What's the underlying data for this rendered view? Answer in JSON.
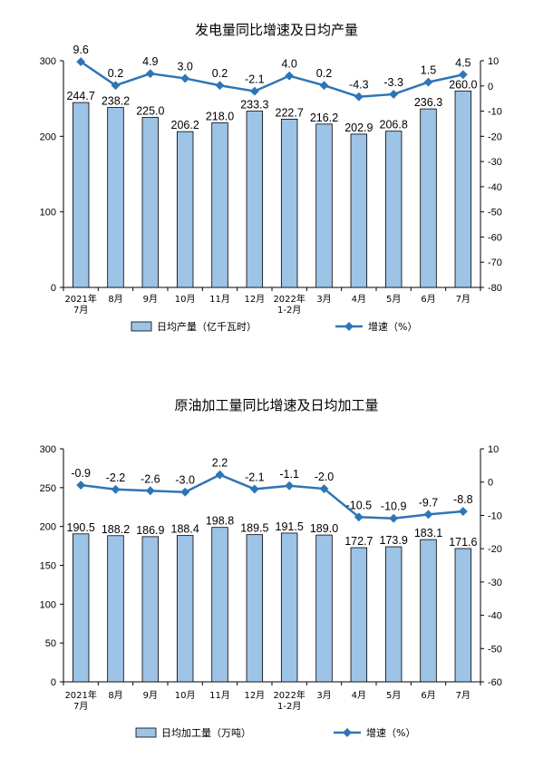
{
  "chart_data": [
    {
      "type": "bar+line",
      "title": "发电量同比增速及日均产量",
      "categories": [
        [
          "2021年",
          "7月"
        ],
        [
          "8月"
        ],
        [
          "9月"
        ],
        [
          "10月"
        ],
        [
          "11月"
        ],
        [
          "12月"
        ],
        [
          "2022年",
          "1-2月"
        ],
        [
          "3月"
        ],
        [
          "4月"
        ],
        [
          "5月"
        ],
        [
          "6月"
        ],
        [
          "7月"
        ]
      ],
      "bar_series": {
        "name": "日均产量（亿千瓦时）",
        "values": [
          244.7,
          238.2,
          225.0,
          206.2,
          218.0,
          233.3,
          222.7,
          216.2,
          202.9,
          206.8,
          236.3,
          260.0
        ],
        "labels": [
          "244.7",
          "238.2",
          "225.0",
          "206.2",
          "218.0",
          "233.3",
          "222.7",
          "216.2",
          "202.9",
          "206.8",
          "236.3",
          "260.0"
        ]
      },
      "line_series": {
        "name": "增速（%）",
        "values": [
          9.6,
          0.2,
          4.9,
          3.0,
          0.2,
          -2.1,
          4.0,
          0.2,
          -4.3,
          -3.3,
          1.5,
          4.5
        ],
        "labels": [
          "9.6",
          "0.2",
          "4.9",
          "3.0",
          "0.2",
          "-2.1",
          "4.0",
          "0.2",
          "-4.3",
          "-3.3",
          "1.5",
          "4.5"
        ]
      },
      "left_axis": {
        "min": 0,
        "max": 300,
        "ticks": [
          "0",
          "100",
          "200",
          "300"
        ]
      },
      "right_axis": {
        "min": -80,
        "max": 10,
        "ticks": [
          "10",
          "0",
          "-10",
          "-20",
          "-30",
          "-40",
          "-50",
          "-60",
          "-70",
          "-80"
        ]
      },
      "legend_position": "bottom",
      "grid": false,
      "colors": {
        "bar": "#9dc3e6",
        "line": "#2e75b6"
      }
    },
    {
      "type": "bar+line",
      "title": "原油加工量同比增速及日均加工量",
      "categories": [
        [
          "2021年",
          "7月"
        ],
        [
          "8月"
        ],
        [
          "9月"
        ],
        [
          "10月"
        ],
        [
          "11月"
        ],
        [
          "12月"
        ],
        [
          "2022年",
          "1-2月"
        ],
        [
          "3月"
        ],
        [
          "4月"
        ],
        [
          "5月"
        ],
        [
          "6月"
        ],
        [
          "7月"
        ]
      ],
      "bar_series": {
        "name": "日均加工量（万吨）",
        "values": [
          190.5,
          188.2,
          186.9,
          188.4,
          198.8,
          189.5,
          191.5,
          189.0,
          172.7,
          173.9,
          183.1,
          171.6
        ],
        "labels": [
          "190.5",
          "188.2",
          "186.9",
          "188.4",
          "198.8",
          "189.5",
          "191.5",
          "189.0",
          "172.7",
          "173.9",
          "183.1",
          "171.6"
        ]
      },
      "line_series": {
        "name": "增速（%）",
        "values": [
          -0.9,
          -2.2,
          -2.6,
          -3.0,
          2.2,
          -2.1,
          -1.1,
          -2.0,
          -10.5,
          -10.9,
          -9.7,
          -8.8
        ],
        "labels": [
          "-0.9",
          "-2.2",
          "-2.6",
          "-3.0",
          "2.2",
          "-2.1",
          "-1.1",
          "-2.0",
          "-10.5",
          "-10.9",
          "-9.7",
          "-8.8"
        ]
      },
      "left_axis": {
        "min": 0,
        "max": 300,
        "ticks": [
          "0",
          "50",
          "100",
          "150",
          "200",
          "250",
          "300"
        ]
      },
      "right_axis": {
        "min": -60,
        "max": 10,
        "ticks": [
          "10",
          "0",
          "-10",
          "-20",
          "-30",
          "-40",
          "-50",
          "-60"
        ]
      },
      "legend_position": "bottom",
      "grid": false,
      "colors": {
        "bar": "#9dc3e6",
        "line": "#2e75b6"
      }
    }
  ]
}
